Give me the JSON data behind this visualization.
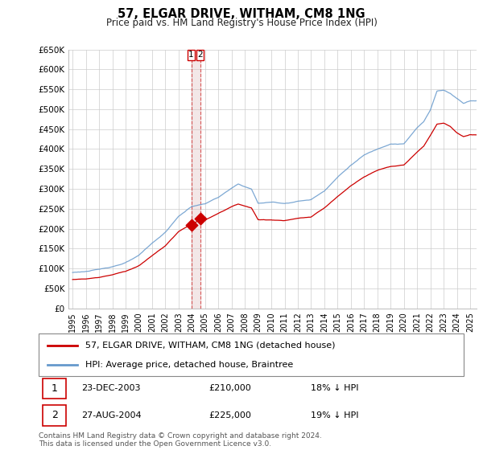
{
  "title": "57, ELGAR DRIVE, WITHAM, CM8 1NG",
  "subtitle": "Price paid vs. HM Land Registry's House Price Index (HPI)",
  "ylabel_ticks": [
    "£0",
    "£50K",
    "£100K",
    "£150K",
    "£200K",
    "£250K",
    "£300K",
    "£350K",
    "£400K",
    "£450K",
    "£500K",
    "£550K",
    "£600K",
    "£650K"
  ],
  "ytick_values": [
    0,
    50000,
    100000,
    150000,
    200000,
    250000,
    300000,
    350000,
    400000,
    450000,
    500000,
    550000,
    600000,
    650000
  ],
  "legend_line1": "57, ELGAR DRIVE, WITHAM, CM8 1NG (detached house)",
  "legend_line2": "HPI: Average price, detached house, Braintree",
  "transaction1_date": "23-DEC-2003",
  "transaction1_price": "£210,000",
  "transaction1_hpi": "18% ↓ HPI",
  "transaction2_date": "27-AUG-2004",
  "transaction2_price": "£225,000",
  "transaction2_hpi": "19% ↓ HPI",
  "footer": "Contains HM Land Registry data © Crown copyright and database right 2024.\nThis data is licensed under the Open Government Licence v3.0.",
  "line_color_red": "#cc0000",
  "line_color_blue": "#6699cc",
  "grid_color": "#cccccc",
  "background_color": "#ffffff",
  "vline_color": "#cc0000",
  "marker_color": "#cc0000"
}
